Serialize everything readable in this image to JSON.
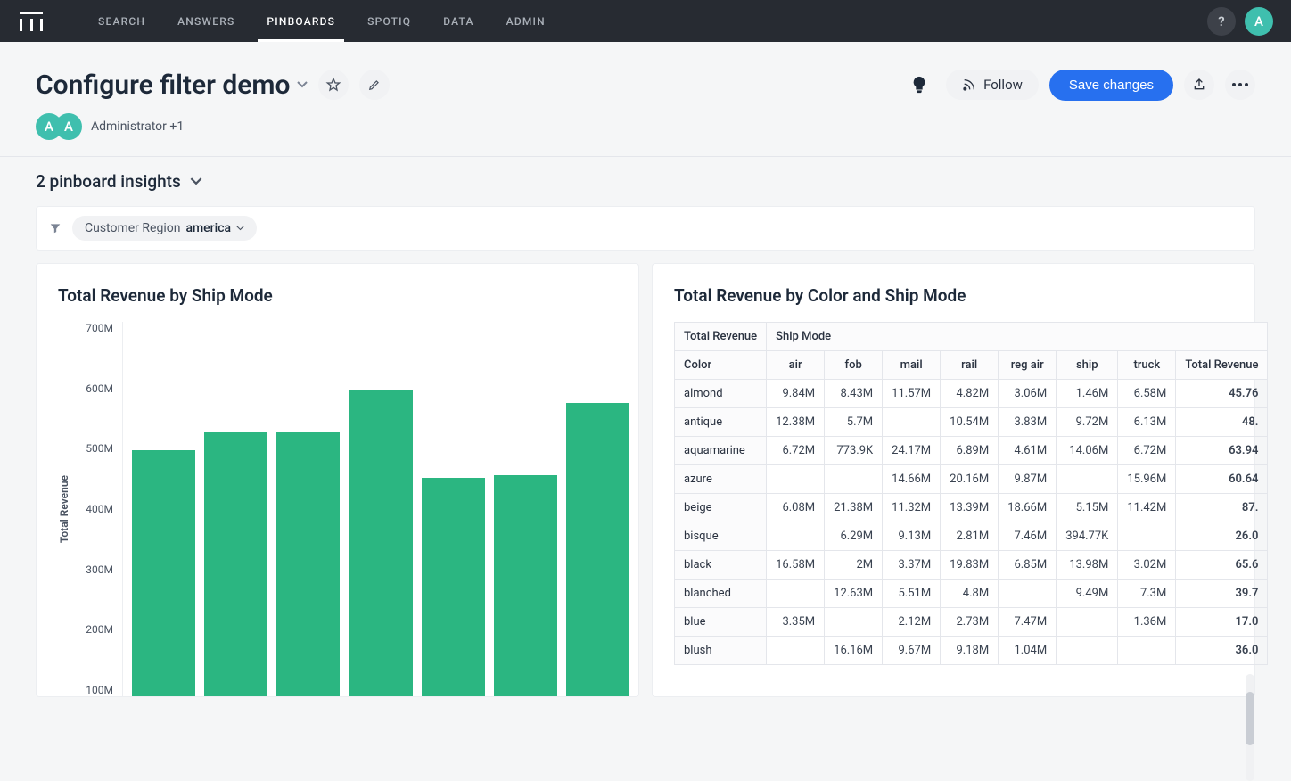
{
  "nav": {
    "items": [
      "SEARCH",
      "ANSWERS",
      "PINBOARDS",
      "SPOTIQ",
      "DATA",
      "ADMIN"
    ],
    "active_index": 2
  },
  "header": {
    "title": "Configure filter demo",
    "follow_label": "Follow",
    "save_label": "Save changes",
    "user_text": "Administrator +1",
    "help_glyph": "?",
    "avatar_letter": "A"
  },
  "insights": {
    "label": "2 pinboard insights"
  },
  "filter": {
    "label": "Customer Region",
    "value": "america"
  },
  "chart": {
    "title": "Total Revenue by Ship Mode",
    "y_label": "Total Revenue",
    "y_ticks": [
      "700M",
      "600M",
      "500M",
      "400M",
      "300M",
      "200M",
      "100M"
    ],
    "y_min": 100,
    "y_max": 700,
    "bar_color": "#2bb681",
    "bars": [
      495,
      525,
      525,
      590,
      450,
      455,
      570
    ]
  },
  "table": {
    "title": "Total Revenue by Color and Ship Mode",
    "corner_label": "Total Revenue",
    "spanner_label": "Ship Mode",
    "row_header": "Color",
    "ship_modes": [
      "air",
      "fob",
      "mail",
      "rail",
      "reg air",
      "ship",
      "truck"
    ],
    "total_col": "Total Revenue",
    "rows": [
      {
        "color": "almond",
        "cells": [
          "9.84M",
          "8.43M",
          "11.57M",
          "4.82M",
          "3.06M",
          "1.46M",
          "6.58M"
        ],
        "total": "45.76"
      },
      {
        "color": "antique",
        "cells": [
          "12.38M",
          "5.7M",
          "",
          "10.54M",
          "3.83M",
          "9.72M",
          "6.13M"
        ],
        "total": "48."
      },
      {
        "color": "aquamarine",
        "cells": [
          "6.72M",
          "773.9K",
          "24.17M",
          "6.89M",
          "4.61M",
          "14.06M",
          "6.72M"
        ],
        "total": "63.94"
      },
      {
        "color": "azure",
        "cells": [
          "",
          "",
          "14.66M",
          "20.16M",
          "9.87M",
          "",
          "15.96M"
        ],
        "total": "60.64"
      },
      {
        "color": "beige",
        "cells": [
          "6.08M",
          "21.38M",
          "11.32M",
          "13.39M",
          "18.66M",
          "5.15M",
          "11.42M"
        ],
        "total": "87."
      },
      {
        "color": "bisque",
        "cells": [
          "",
          "6.29M",
          "9.13M",
          "2.81M",
          "7.46M",
          "394.77K",
          ""
        ],
        "total": "26.0"
      },
      {
        "color": "black",
        "cells": [
          "16.58M",
          "2M",
          "3.37M",
          "19.83M",
          "6.85M",
          "13.98M",
          "3.02M"
        ],
        "total": "65.6"
      },
      {
        "color": "blanched",
        "cells": [
          "",
          "12.63M",
          "5.51M",
          "4.8M",
          "",
          "9.49M",
          "7.3M"
        ],
        "total": "39.7"
      },
      {
        "color": "blue",
        "cells": [
          "3.35M",
          "",
          "2.12M",
          "2.73M",
          "7.47M",
          "",
          "1.36M"
        ],
        "total": "17.0"
      },
      {
        "color": "blush",
        "cells": [
          "",
          "16.16M",
          "9.67M",
          "9.18M",
          "1.04M",
          "",
          ""
        ],
        "total": "36.0"
      }
    ]
  },
  "colors": {
    "accent": "#2770ef",
    "topbar_bg": "#272b32",
    "avatar_bg": "#3fbfae",
    "bar": "#2bb681",
    "text": "#1d2939",
    "muted": "#4a5361"
  }
}
